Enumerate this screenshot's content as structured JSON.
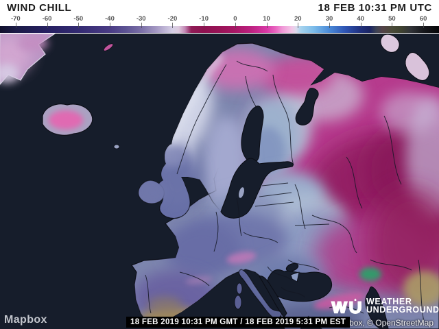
{
  "header": {
    "title": "WIND CHILL",
    "timestamp": "18 FEB 10:31 PM UTC"
  },
  "scalebar": {
    "ticks": [
      {
        "label": "-70",
        "value": -70
      },
      {
        "label": "-60",
        "value": -60
      },
      {
        "label": "-50",
        "value": -50
      },
      {
        "label": "-40",
        "value": -40
      },
      {
        "label": "-30",
        "value": -30
      },
      {
        "label": "-20",
        "value": -20
      },
      {
        "label": "-10",
        "value": -10
      },
      {
        "label": "0",
        "value": 0
      },
      {
        "label": "10",
        "value": 10
      },
      {
        "label": "20",
        "value": 20
      },
      {
        "label": "30",
        "value": 30
      },
      {
        "label": "40",
        "value": 40
      },
      {
        "label": "50",
        "value": 50
      },
      {
        "label": "60",
        "value": 60
      }
    ],
    "domain": [
      -75,
      65
    ],
    "stops": [
      {
        "v": -75,
        "c": "#10102c"
      },
      {
        "v": -70,
        "c": "#1b1b47"
      },
      {
        "v": -60,
        "c": "#262061"
      },
      {
        "v": -50,
        "c": "#332a72"
      },
      {
        "v": -40,
        "c": "#4a3c85"
      },
      {
        "v": -35,
        "c": "#5c5293"
      },
      {
        "v": -30,
        "c": "#7a6fa7"
      },
      {
        "v": -25,
        "c": "#a69ac4"
      },
      {
        "v": -20,
        "c": "#d6cfe6"
      },
      {
        "v": -18,
        "c": "#ddcade"
      },
      {
        "v": -16,
        "c": "#c387b4"
      },
      {
        "v": -14,
        "c": "#8f1c56"
      },
      {
        "v": -10,
        "c": "#8e1150"
      },
      {
        "v": -5,
        "c": "#991457"
      },
      {
        "v": 0,
        "c": "#a81766"
      },
      {
        "v": 5,
        "c": "#bc2180"
      },
      {
        "v": 10,
        "c": "#d838a6"
      },
      {
        "v": 13,
        "c": "#e967c1"
      },
      {
        "v": 15,
        "c": "#f098d7"
      },
      {
        "v": 18,
        "c": "#f3c6e7"
      },
      {
        "v": 19.5,
        "c": "#dcdaec"
      },
      {
        "v": 21,
        "c": "#a5d3ee"
      },
      {
        "v": 25,
        "c": "#7cbcea"
      },
      {
        "v": 30,
        "c": "#4a8ad8"
      },
      {
        "v": 35,
        "c": "#2f55b4"
      },
      {
        "v": 40,
        "c": "#20307e"
      },
      {
        "v": 43,
        "c": "#1b2562"
      },
      {
        "v": 45,
        "c": "#3d4354"
      },
      {
        "v": 47,
        "c": "#544349"
      },
      {
        "v": 50,
        "c": "#4a4a38"
      },
      {
        "v": 53,
        "c": "#3f4230"
      },
      {
        "v": 56,
        "c": "#313338"
      },
      {
        "v": 60,
        "c": "#17181c"
      },
      {
        "v": 65,
        "c": "#060608"
      }
    ]
  },
  "map": {
    "palette": {
      "ocean": "#161d2b",
      "land_base": "#7d86ae",
      "russia_magenta": "#b63a8d",
      "crimson_core": "#8f1d5f",
      "scandinavia_lavender": "#a3a8cf",
      "finland_steel": "#9db1cd",
      "europe_steel": "#6f77ac",
      "spain_tan": "#a18a5c",
      "kazakh_tan": "#ab9b66",
      "caspian_green": "#2f9e6b",
      "iceland_pink": "#e06ab2",
      "greenland_lavender": "#b995c4",
      "coast_line": "#0c0e16",
      "border_line": "#141824"
    }
  },
  "footer": {
    "mapbox_logo": "Mapbox",
    "datetime_badge": "18 FEB 2019 10:31 PM GMT / 18 FEB 2019 5:31 PM EST",
    "brand_wu": "WU",
    "brand_line1": "WEATHER",
    "brand_line2": "UNDERGROUND",
    "attribution": "© Mapbox, © OpenStreetMap"
  }
}
